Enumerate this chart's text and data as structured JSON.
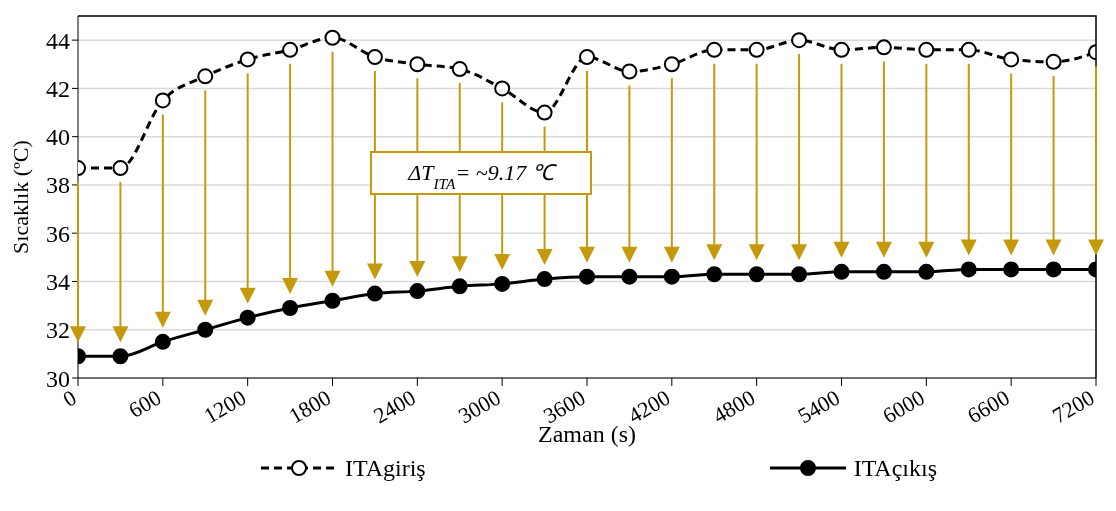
{
  "chart_data": {
    "type": "line",
    "xlabel": "Zaman (s)",
    "ylabel": "Sıcaklık (ºC)",
    "x": [
      0,
      300,
      600,
      900,
      1200,
      1500,
      1800,
      2100,
      2400,
      2700,
      3000,
      3300,
      3600,
      3900,
      4200,
      4500,
      4800,
      5100,
      5400,
      5700,
      6000,
      6300,
      6600,
      6900,
      7200
    ],
    "series": [
      {
        "name": "ITAgiriş",
        "color": "#000000",
        "line_style": "dashed",
        "values": [
          38.7,
          38.7,
          41.5,
          42.5,
          43.2,
          43.6,
          44.1,
          43.3,
          43.0,
          42.8,
          42.0,
          41.0,
          43.3,
          42.7,
          43.0,
          43.6,
          43.6,
          44.0,
          43.6,
          43.7,
          43.6,
          43.6,
          43.2,
          43.1,
          43.5
        ]
      },
      {
        "name": "ITAçıkış",
        "color": "#000000",
        "line_style": "solid",
        "values": [
          30.9,
          30.9,
          31.5,
          32.0,
          32.5,
          32.9,
          33.2,
          33.5,
          33.6,
          33.8,
          33.9,
          34.1,
          34.2,
          34.2,
          34.2,
          34.3,
          34.3,
          34.3,
          34.4,
          34.4,
          34.4,
          34.5,
          34.5,
          34.5,
          34.5
        ]
      }
    ],
    "xlim": [
      0,
      7200
    ],
    "xticks": [
      0,
      600,
      1200,
      1800,
      2400,
      3000,
      3600,
      4200,
      4800,
      5400,
      6000,
      6600,
      7200
    ],
    "ylim": [
      30,
      45
    ],
    "yticks": [
      30,
      32,
      34,
      36,
      38,
      40,
      42,
      44
    ],
    "grid": "y",
    "legend": "bottom",
    "marker": "circle",
    "annotations": [
      "ΔT$_{ITA}$= ~9.17 ℃"
    ]
  }
}
